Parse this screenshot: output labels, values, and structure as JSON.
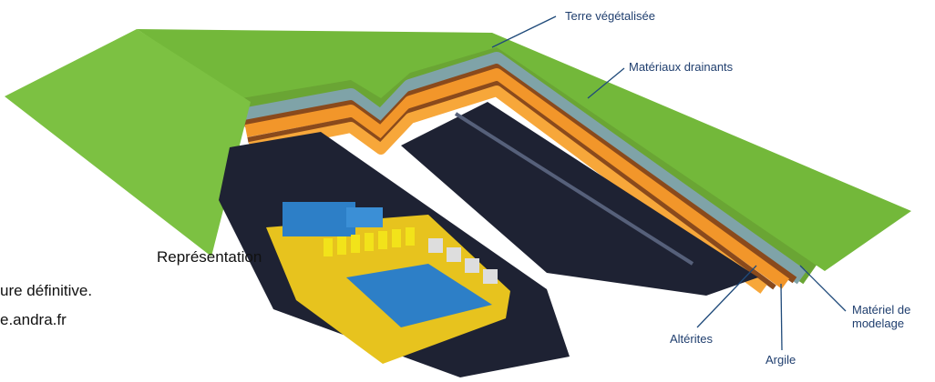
{
  "labels": {
    "terre": "Terre végétalisée",
    "drainants": "Matériaux drainants",
    "alterites": "Altérites",
    "argile": "Argile",
    "modelage": [
      "Matériel de",
      "modelage"
    ]
  },
  "caption": [
    "Représentation",
    "ure définitive.",
    "e.andra.fr"
  ]
}
